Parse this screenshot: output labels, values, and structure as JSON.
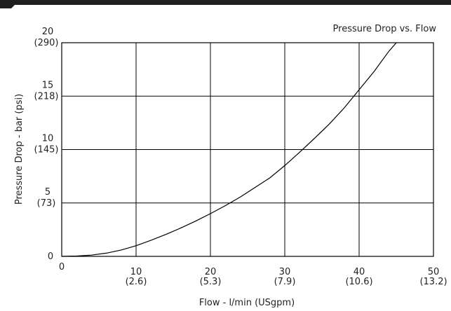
{
  "chart_data": {
    "type": "line",
    "title": "Pressure Drop vs. Flow",
    "xlabel": "Flow - l/min (USgpm)",
    "ylabel": "Pressure Drop - bar (psi)",
    "xlim": [
      0,
      50
    ],
    "ylim": [
      0,
      20
    ],
    "grid": true,
    "x_ticks": [
      {
        "value": 0,
        "label": "0",
        "sub": ""
      },
      {
        "value": 10,
        "label": "10",
        "sub": "(2.6)"
      },
      {
        "value": 20,
        "label": "20",
        "sub": "(5.3)"
      },
      {
        "value": 30,
        "label": "30",
        "sub": "(7.9)"
      },
      {
        "value": 40,
        "label": "40",
        "sub": "(10.6)"
      },
      {
        "value": 50,
        "label": "50",
        "sub": "(13.2)"
      }
    ],
    "y_ticks": [
      {
        "value": 0,
        "label": "0",
        "sub": ""
      },
      {
        "value": 5,
        "label": "5",
        "sub": "(73)"
      },
      {
        "value": 10,
        "label": "10",
        "sub": "(145)"
      },
      {
        "value": 15,
        "label": "15",
        "sub": "(218)"
      },
      {
        "value": 20,
        "label": "20",
        "sub": "(290)"
      }
    ],
    "series": [
      {
        "x": [
          0,
          2,
          4,
          6,
          8,
          10,
          12,
          14,
          16,
          18,
          20,
          22,
          24,
          26,
          28,
          30,
          32,
          34,
          36,
          38,
          40,
          42,
          44,
          45
        ],
        "y": [
          0,
          0.03,
          0.12,
          0.3,
          0.6,
          1.0,
          1.5,
          2.05,
          2.65,
          3.3,
          4.0,
          4.75,
          5.55,
          6.45,
          7.35,
          8.5,
          9.75,
          11.05,
          12.4,
          13.9,
          15.6,
          17.3,
          19.2,
          20
        ]
      }
    ],
    "colors": {
      "line": "#000000",
      "grid": "#000000",
      "axis": "#000000"
    }
  }
}
